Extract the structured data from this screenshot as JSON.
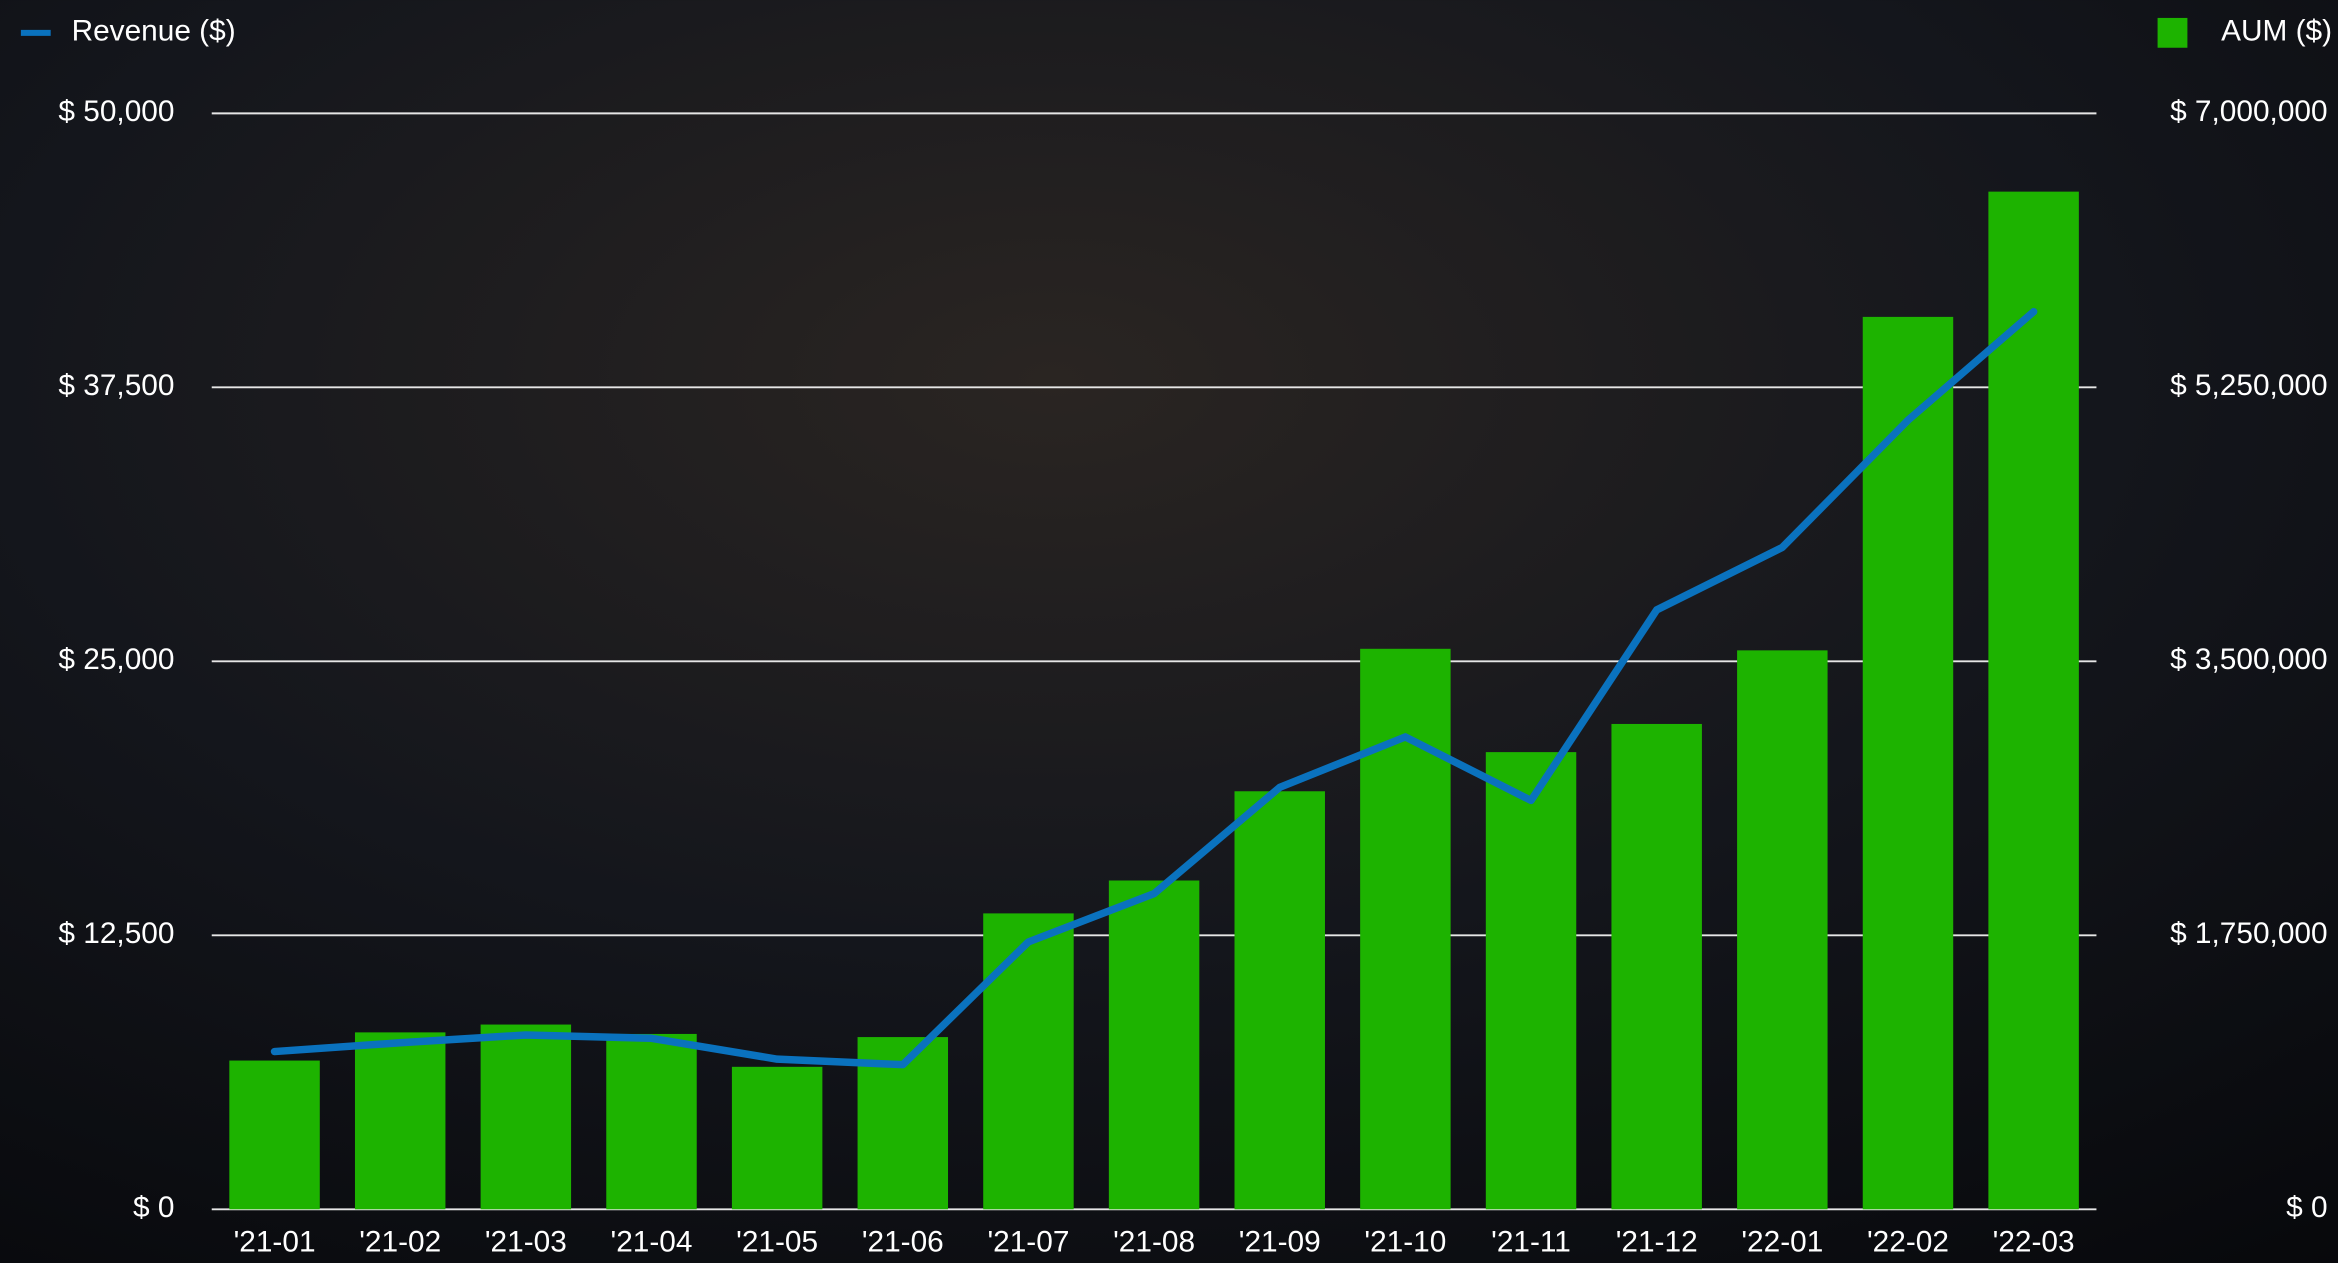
{
  "chart_data": {
    "type": "bar-line",
    "categories": [
      "'21-01",
      "'21-02",
      "'21-03",
      "'21-04",
      "'21-05",
      "'21-06",
      "'21-07",
      "'21-08",
      "'21-09",
      "'21-10",
      "'21-11",
      "'21-12",
      "'22-01",
      "'22-02",
      "'22-03"
    ],
    "series": [
      {
        "name": "Revenue ($)",
        "type": "line",
        "color": "#0a72be",
        "axis": "y",
        "values": [
          7200,
          7600,
          7950,
          7800,
          6850,
          6600,
          12200,
          14400,
          19250,
          21550,
          18650,
          27350,
          30200,
          36000,
          40950
        ]
      },
      {
        "name": "AUM ($)",
        "type": "bar",
        "color": "#1db300",
        "axis": "y2",
        "values": [
          950000,
          1130000,
          1180000,
          1120000,
          910000,
          1100000,
          1890000,
          2100000,
          2670000,
          3580000,
          2920000,
          3100000,
          3570000,
          5700000,
          6500000
        ]
      }
    ],
    "ylim": [
      0,
      50000
    ],
    "yticks": [
      {
        "value": 0,
        "label": "$ 0"
      },
      {
        "value": 12500,
        "label": "$ 12,500"
      },
      {
        "value": 25000,
        "label": "$ 25,000"
      },
      {
        "value": 37500,
        "label": "$ 37,500"
      },
      {
        "value": 50000,
        "label": "$ 50,000"
      }
    ],
    "y2lim": [
      0,
      7000000
    ],
    "y2ticks": [
      {
        "value": 0,
        "label": "$ 0"
      },
      {
        "value": 1750000,
        "label": "$ 1,750,000"
      },
      {
        "value": 3500000,
        "label": "$ 3,500,000"
      },
      {
        "value": 5250000,
        "label": "$ 5,250,000"
      },
      {
        "value": 7000000,
        "label": "$ 7,000,000"
      }
    ],
    "grid": true
  }
}
